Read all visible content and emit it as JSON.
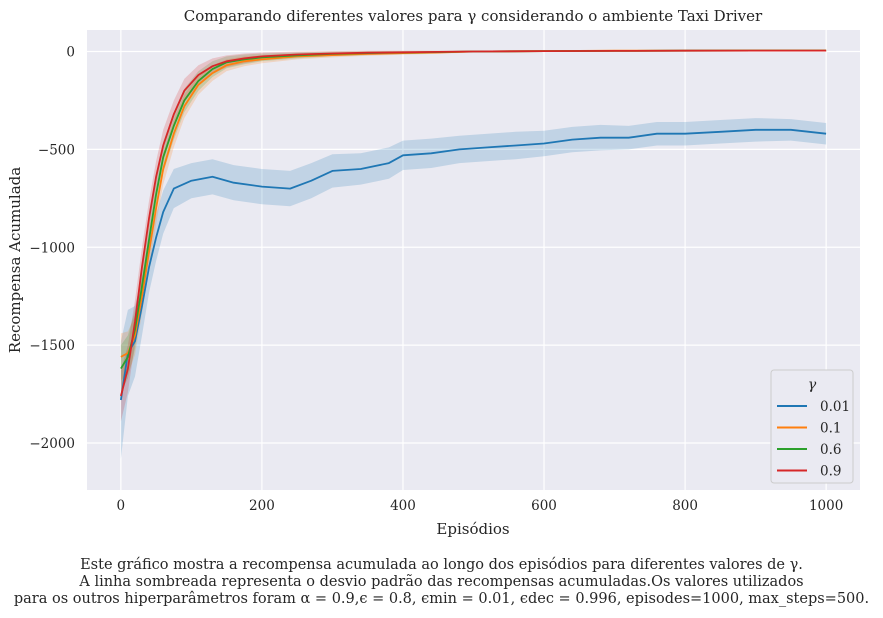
{
  "chart_data": {
    "type": "line",
    "title": "Comparando diferentes valores para γ considerando o ambiente Taxi Driver",
    "xlabel": "Episódios",
    "ylabel": "Recompensa Acumulada",
    "xlim": [
      -48,
      1048
    ],
    "ylim": [
      -2240,
      110
    ],
    "xticks": [
      "0",
      "200",
      "400",
      "600",
      "800",
      "1000"
    ],
    "yticks": [
      "0",
      "−500",
      "−1000",
      "−1500",
      "−2000"
    ],
    "grid": true,
    "legend": {
      "title": "γ",
      "placement": "lower-right"
    },
    "shaded_band": "standard deviation",
    "series": [
      {
        "name": "0.01",
        "color": "#1f77b4",
        "x": [
          0,
          10,
          20,
          30,
          40,
          50,
          60,
          75,
          100,
          130,
          160,
          200,
          240,
          270,
          300,
          340,
          380,
          400,
          440,
          480,
          520,
          560,
          600,
          640,
          680,
          720,
          760,
          800,
          850,
          900,
          950,
          1000
        ],
        "y": [
          -1780,
          -1540,
          -1480,
          -1300,
          -1100,
          -950,
          -820,
          -700,
          -660,
          -640,
          -670,
          -690,
          -700,
          -660,
          -610,
          -600,
          -570,
          -530,
          -520,
          -500,
          -490,
          -480,
          -470,
          -450,
          -440,
          -440,
          -420,
          -420,
          -410,
          -400,
          -400,
          -420
        ],
        "std": [
          300,
          220,
          180,
          150,
          130,
          120,
          110,
          100,
          90,
          90,
          90,
          90,
          90,
          90,
          85,
          80,
          80,
          75,
          75,
          70,
          70,
          70,
          65,
          65,
          65,
          60,
          60,
          60,
          60,
          60,
          55,
          55
        ]
      },
      {
        "name": "0.1",
        "color": "#ff7f0e",
        "x": [
          0,
          10,
          20,
          30,
          40,
          50,
          60,
          75,
          90,
          110,
          130,
          150,
          175,
          200,
          250,
          300,
          350,
          400,
          450,
          500,
          600,
          700,
          800,
          900,
          1000
        ],
        "y": [
          -1560,
          -1540,
          -1450,
          -1250,
          -1020,
          -800,
          -600,
          -420,
          -280,
          -170,
          -110,
          -70,
          -50,
          -40,
          -25,
          -18,
          -12,
          -8,
          -5,
          0,
          2,
          4,
          5,
          6,
          6
        ],
        "std": [
          120,
          110,
          100,
          90,
          90,
          80,
          80,
          70,
          60,
          50,
          40,
          30,
          25,
          20,
          15,
          12,
          10,
          8,
          6,
          5,
          4,
          4,
          3,
          3,
          3
        ]
      },
      {
        "name": "0.6",
        "color": "#2ca02c",
        "x": [
          0,
          10,
          20,
          30,
          40,
          50,
          60,
          75,
          90,
          110,
          130,
          150,
          175,
          200,
          250,
          300,
          350,
          400,
          450,
          500,
          600,
          700,
          800,
          900,
          1000
        ],
        "y": [
          -1620,
          -1560,
          -1420,
          -1200,
          -960,
          -730,
          -540,
          -380,
          -250,
          -150,
          -90,
          -55,
          -40,
          -30,
          -20,
          -12,
          -8,
          -5,
          -3,
          0,
          2,
          3,
          4,
          5,
          5
        ],
        "std": [
          120,
          110,
          100,
          90,
          90,
          80,
          80,
          70,
          60,
          50,
          40,
          30,
          25,
          20,
          15,
          12,
          10,
          8,
          6,
          5,
          4,
          4,
          3,
          3,
          3
        ]
      },
      {
        "name": "0.9",
        "color": "#d62728",
        "x": [
          0,
          10,
          20,
          30,
          40,
          50,
          60,
          75,
          90,
          110,
          130,
          150,
          175,
          200,
          250,
          300,
          350,
          400,
          450,
          500,
          600,
          700,
          800,
          900,
          1000
        ],
        "y": [
          -1760,
          -1620,
          -1380,
          -1100,
          -850,
          -640,
          -480,
          -320,
          -200,
          -120,
          -75,
          -50,
          -35,
          -25,
          -15,
          -10,
          -6,
          -4,
          -2,
          0,
          2,
          3,
          4,
          5,
          5
        ],
        "std": [
          130,
          120,
          110,
          100,
          90,
          80,
          80,
          70,
          60,
          50,
          40,
          30,
          25,
          20,
          15,
          12,
          10,
          8,
          6,
          5,
          4,
          4,
          3,
          3,
          3
        ]
      }
    ]
  },
  "caption": {
    "line1": "Este gráfico mostra a recompensa acumulada ao longo dos episódios para diferentes valores de γ.",
    "line2": "A linha sombreada representa o desvio padrão das recompensas acumuladas.Os valores utilizados",
    "line3": "para os outros hiperparâmetros foram α = 0.9,ϵ = 0.8, ϵmin = 0.01, ϵdec = 0.996, episodes=1000, max_steps=500."
  }
}
